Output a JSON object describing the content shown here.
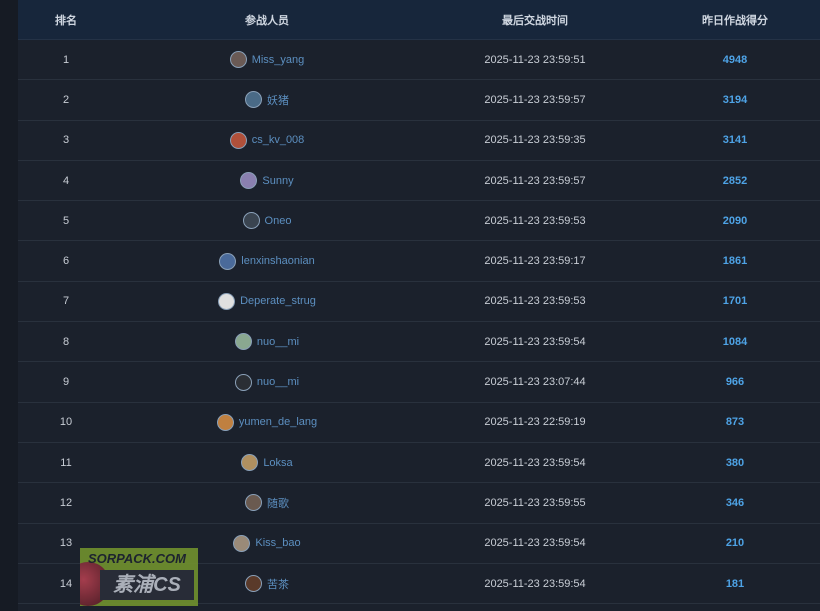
{
  "headers": {
    "rank": "排名",
    "player": "参战人员",
    "last_time": "最后交战时间",
    "score": "昨日作战得分"
  },
  "rows": [
    {
      "rank": "1",
      "name": "Miss_yang",
      "time": "2025-11-23 23:59:51",
      "score": "4948",
      "avatar": "#6a5a55"
    },
    {
      "rank": "2",
      "name": "妖猪",
      "time": "2025-11-23 23:59:57",
      "score": "3194",
      "avatar": "#4a6a86"
    },
    {
      "rank": "3",
      "name": "cs_kv_008",
      "time": "2025-11-23 23:59:35",
      "score": "3141",
      "avatar": "#b0503a"
    },
    {
      "rank": "4",
      "name": "Sunny",
      "time": "2025-11-23 23:59:57",
      "score": "2852",
      "avatar": "#8a80b0"
    },
    {
      "rank": "5",
      "name": "Oneo",
      "time": "2025-11-23 23:59:53",
      "score": "2090",
      "avatar": "#3a4450"
    },
    {
      "rank": "6",
      "name": "lenxinshaonian",
      "time": "2025-11-23 23:59:17",
      "score": "1861",
      "avatar": "#4a6a9a"
    },
    {
      "rank": "7",
      "name": "Deperate_strug",
      "time": "2025-11-23 23:59:53",
      "score": "1701",
      "avatar": "#e0e0e0"
    },
    {
      "rank": "8",
      "name": "nuo__mi",
      "time": "2025-11-23 23:59:54",
      "score": "1084",
      "avatar": "#8aa890"
    },
    {
      "rank": "9",
      "name": "nuo__mi",
      "time": "2025-11-23 23:07:44",
      "score": "966",
      "avatar": "#2a2e34"
    },
    {
      "rank": "10",
      "name": "yumen_de_lang",
      "time": "2025-11-23 22:59:19",
      "score": "873",
      "avatar": "#c08040"
    },
    {
      "rank": "11",
      "name": "Loksa",
      "time": "2025-11-23 23:59:54",
      "score": "380",
      "avatar": "#b09060"
    },
    {
      "rank": "12",
      "name": "随歌",
      "time": "2025-11-23 23:59:55",
      "score": "346",
      "avatar": "#6a5a50"
    },
    {
      "rank": "13",
      "name": "Kiss_bao",
      "time": "2025-11-23 23:59:54",
      "score": "210",
      "avatar": "#9a8a78"
    },
    {
      "rank": "14",
      "name": "苦茶",
      "time": "2025-11-23 23:59:54",
      "score": "181",
      "avatar": "#5a3a2a"
    }
  ],
  "watermark": {
    "site": "SORPACK.COM",
    "brand": "素浦CS"
  }
}
